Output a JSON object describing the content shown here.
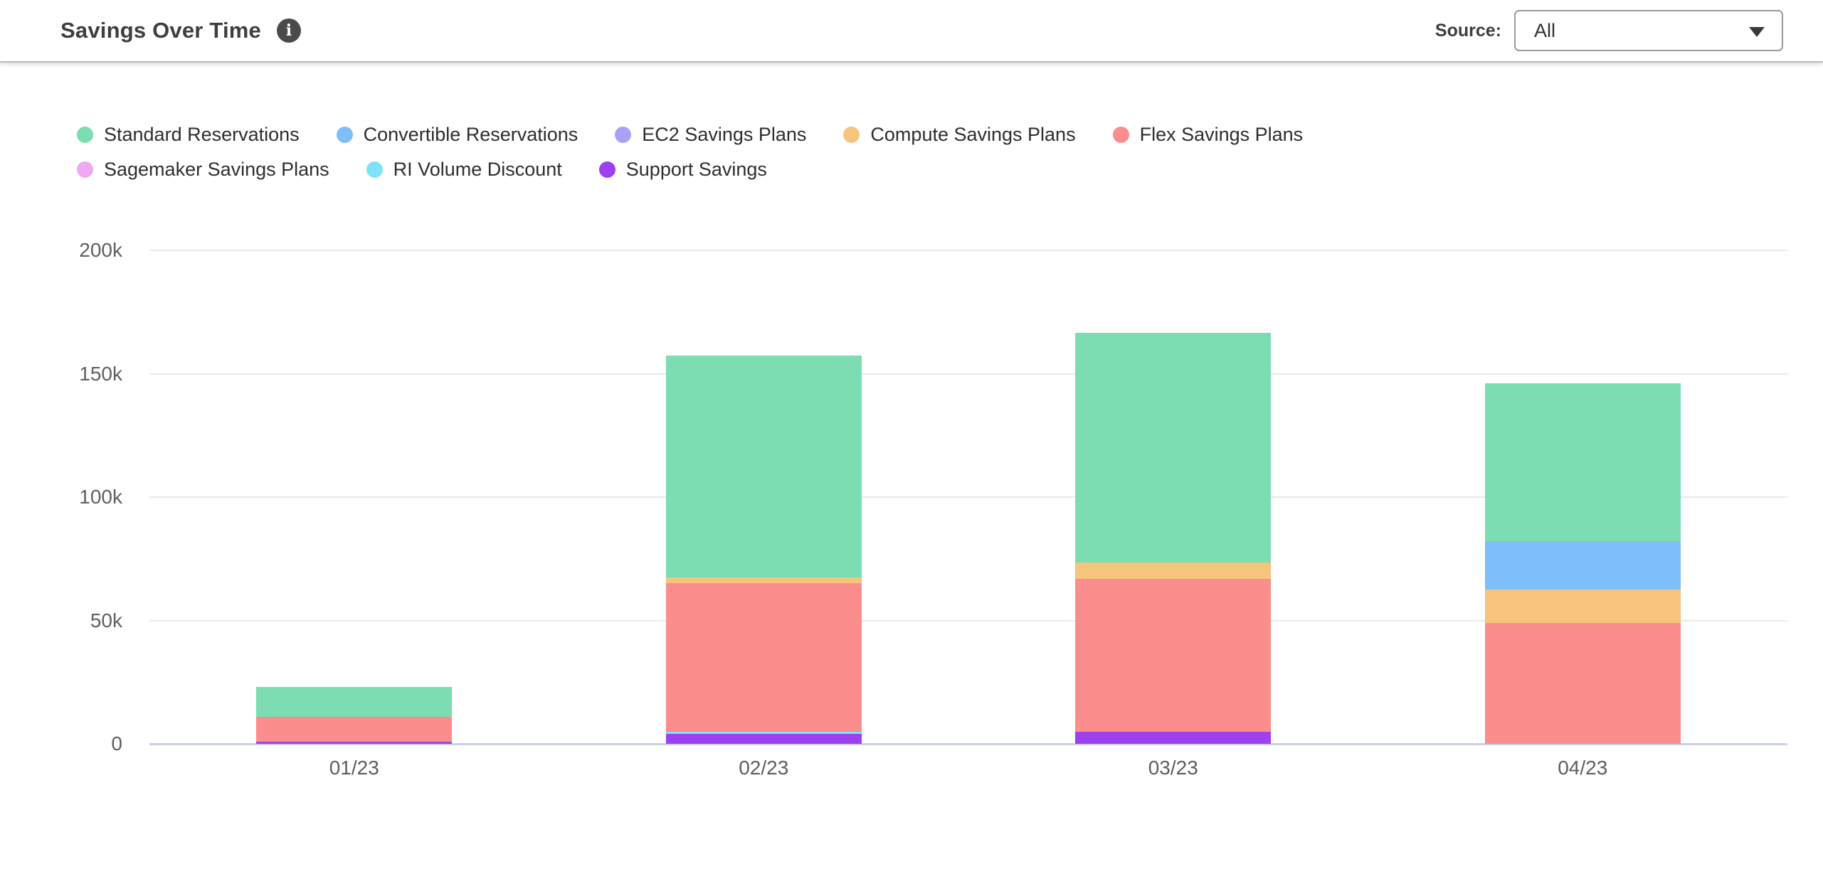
{
  "header": {
    "title": "Savings Over Time",
    "info_icon_glyph": "i",
    "source_label": "Source:",
    "source_value": "All"
  },
  "colors": {
    "header_divider": "#bdbdbd",
    "grid_color": "#e9e9e9",
    "axis_line_color": "#c9d1e6",
    "tick_text_color": "#606060",
    "legend_text_color": "#2e2e2e",
    "title_color": "#3e3e3e"
  },
  "chart_data": {
    "type": "bar",
    "stacked": true,
    "stack_note": "bars stack bottom-to-top in reverse of series order (Support Savings at bottom, Standard Reservations on top)",
    "title": "Savings Over Time",
    "xlabel": "",
    "ylabel": "",
    "grid": true,
    "legend_position": "top-left",
    "ylim": [
      0,
      200000
    ],
    "yticks": [
      {
        "value": 0,
        "label": "0"
      },
      {
        "value": 50000,
        "label": "50k"
      },
      {
        "value": 100000,
        "label": "100k"
      },
      {
        "value": 150000,
        "label": "150k"
      },
      {
        "value": 200000,
        "label": "200k"
      }
    ],
    "categories": [
      "01/23",
      "02/23",
      "03/23",
      "04/23"
    ],
    "series": [
      {
        "name": "Standard Reservations",
        "color": "#7bddb1",
        "values": [
          12000,
          90000,
          93000,
          64000
        ]
      },
      {
        "name": "Convertible Reservations",
        "color": "#7ebefb",
        "values": [
          0,
          0,
          0,
          19500
        ]
      },
      {
        "name": "EC2 Savings Plans",
        "color": "#a9a1f6",
        "values": [
          0,
          0,
          0,
          0
        ]
      },
      {
        "name": "Compute Savings Plans",
        "color": "#f7c47d",
        "values": [
          0,
          2500,
          6500,
          13500
        ]
      },
      {
        "name": "Flex Savings Plans",
        "color": "#fc8d8d",
        "values": [
          10000,
          60000,
          62000,
          49000
        ]
      },
      {
        "name": "Sagemaker Savings Plans",
        "color": "#efa9f0",
        "values": [
          0,
          0,
          0,
          0
        ]
      },
      {
        "name": "RI Volume Discount",
        "color": "#7ee3f8",
        "values": [
          0,
          1000,
          0,
          0
        ]
      },
      {
        "name": "Support Savings",
        "color": "#9c40f0",
        "values": [
          1000,
          4000,
          5000,
          0
        ]
      }
    ],
    "bar_totals": [
      23000,
      157500,
      166500,
      146000
    ]
  }
}
